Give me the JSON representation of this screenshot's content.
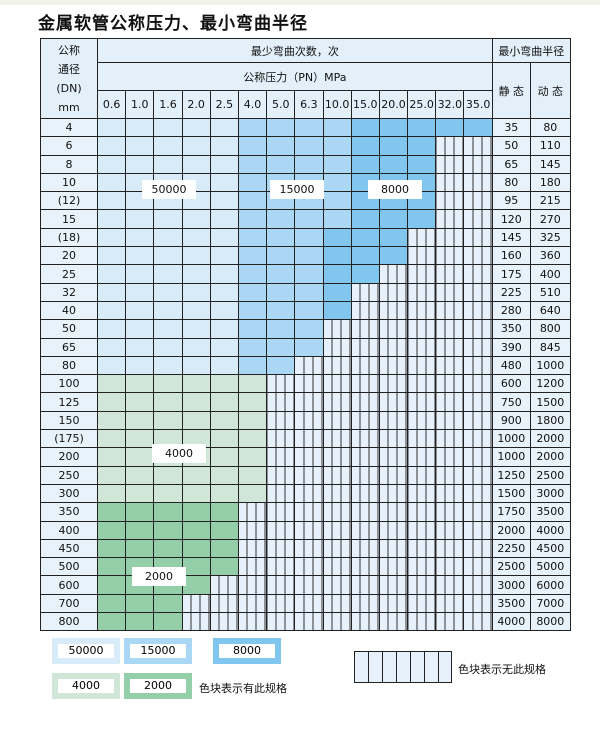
{
  "title": "金属软管公称压力、最小弯曲半径",
  "header": {
    "dn_label_lines": [
      "公称",
      "通径",
      "(DN)",
      "mm"
    ],
    "bend_count": "最少弯曲次数，次",
    "pressure": "公称压力（PN）MPa",
    "min_radius": "最小弯曲半径",
    "static": "静 态",
    "dynamic": "动 态",
    "pressures": [
      "0.6",
      "1.0",
      "1.6",
      "2.0",
      "2.5",
      "4.0",
      "5.0",
      "6.3",
      "10.0",
      "15.0",
      "20.0",
      "25.0",
      "32.0",
      "35.0"
    ]
  },
  "zone_legend": {
    "L": "50000",
    "M": "15000",
    "D": "8000",
    "G": "4000",
    "H": "2000",
    "X": "none"
  },
  "zone_colors": {
    "L": "#d7ebf9",
    "M": "#aad7f3",
    "D": "#80c6ee",
    "G": "#d0e7d7",
    "H": "#95cfa9"
  },
  "rows": [
    {
      "dn": "4",
      "zones": "LLLLLMMMMDDDDD",
      "static": "35",
      "dynamic": "80"
    },
    {
      "dn": "6",
      "zones": "LLLLLMMMMDDDXX",
      "static": "50",
      "dynamic": "110"
    },
    {
      "dn": "8",
      "zones": "LLLLLMMMMDDDXX",
      "static": "65",
      "dynamic": "145"
    },
    {
      "dn": "10",
      "zones": "LLLLLMMMMDDDXX",
      "static": "80",
      "dynamic": "180"
    },
    {
      "dn": "(12)",
      "zones": "LLLLLMMMMDDDXX",
      "static": "95",
      "dynamic": "215"
    },
    {
      "dn": "15",
      "zones": "LLLLLMMMMDDDXX",
      "static": "120",
      "dynamic": "270"
    },
    {
      "dn": "(18)",
      "zones": "LLLLLMMMDDDXXX",
      "static": "145",
      "dynamic": "325"
    },
    {
      "dn": "20",
      "zones": "LLLLLMMMDDDXXX",
      "static": "160",
      "dynamic": "360"
    },
    {
      "dn": "25",
      "zones": "LLLLLMMMDDXXXX",
      "static": "175",
      "dynamic": "400"
    },
    {
      "dn": "32",
      "zones": "LLLLLMMMDXXXXX",
      "static": "225",
      "dynamic": "510"
    },
    {
      "dn": "40",
      "zones": "LLLLLMMMDXXXXX",
      "static": "280",
      "dynamic": "640"
    },
    {
      "dn": "50",
      "zones": "LLLLLMMMXXXXXX",
      "static": "350",
      "dynamic": "800"
    },
    {
      "dn": "65",
      "zones": "LLLLLMMMXXXXXX",
      "static": "390",
      "dynamic": "845"
    },
    {
      "dn": "80",
      "zones": "LLLLLMMXXXXXXX",
      "static": "480",
      "dynamic": "1000"
    },
    {
      "dn": "100",
      "zones": "GGGGGGXXXXXXXX",
      "static": "600",
      "dynamic": "1200"
    },
    {
      "dn": "125",
      "zones": "GGGGGGXXXXXXXX",
      "static": "750",
      "dynamic": "1500"
    },
    {
      "dn": "150",
      "zones": "GGGGGGXXXXXXXX",
      "static": "900",
      "dynamic": "1800"
    },
    {
      "dn": "(175)",
      "zones": "GGGGGGXXXXXXXX",
      "static": "1000",
      "dynamic": "2000"
    },
    {
      "dn": "200",
      "zones": "GGGGGGXXXXXXXX",
      "static": "1000",
      "dynamic": "2000"
    },
    {
      "dn": "250",
      "zones": "GGGGGGXXXXXXXX",
      "static": "1250",
      "dynamic": "2500"
    },
    {
      "dn": "300",
      "zones": "GGGGGGXXXXXXXX",
      "static": "1500",
      "dynamic": "3000"
    },
    {
      "dn": "350",
      "zones": "HHHHHXXXXXXXXX",
      "static": "1750",
      "dynamic": "3500"
    },
    {
      "dn": "400",
      "zones": "HHHHHXXXXXXXXX",
      "static": "2000",
      "dynamic": "4000"
    },
    {
      "dn": "450",
      "zones": "HHHHHXXXXXXXXX",
      "static": "2250",
      "dynamic": "4500"
    },
    {
      "dn": "500",
      "zones": "HHHHHXXXXXXXXX",
      "static": "2500",
      "dynamic": "5000"
    },
    {
      "dn": "600",
      "zones": "HHHHXXXXXXXXXX",
      "static": "3000",
      "dynamic": "6000"
    },
    {
      "dn": "700",
      "zones": "HHHXXXXXXXXXXX",
      "static": "3500",
      "dynamic": "7000"
    },
    {
      "dn": "800",
      "zones": "HHHXXXXXXXXXXX",
      "static": "4000",
      "dynamic": "8000"
    }
  ],
  "legend": {
    "items": [
      "50000",
      "15000",
      "8000",
      "4000",
      "2000"
    ],
    "has_spec": "色块表示有此规格",
    "no_spec": "色块表示无此规格"
  }
}
